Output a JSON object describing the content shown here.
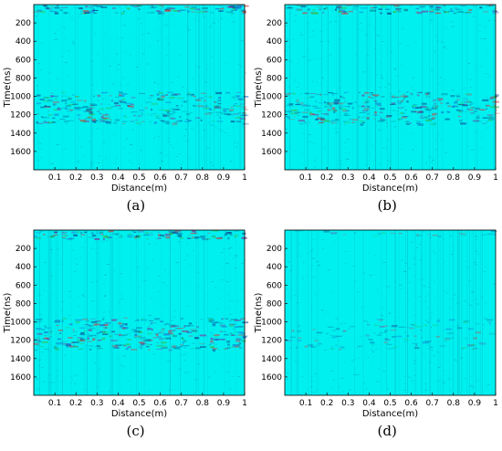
{
  "chart_data": [
    {
      "type": "heatmap",
      "label": "(a)",
      "xlabel": "Distance(m)",
      "ylabel": "Time(ns)",
      "xlim": [
        0,
        1
      ],
      "ylim": [
        1800,
        0
      ],
      "xticks": [
        0.1,
        0.2,
        0.3,
        0.4,
        0.5,
        0.6,
        0.7,
        0.8,
        0.9,
        1
      ],
      "xticklabels": [
        "0.1",
        "0.2",
        "0.3",
        "0.4",
        "0.5",
        "0.6",
        "0.7",
        "0.8",
        "0.9",
        "1"
      ],
      "yticks": [
        200,
        400,
        600,
        800,
        1000,
        1200,
        1400,
        1600
      ],
      "yticklabels": [
        "200",
        "400",
        "600",
        "800",
        "1000",
        "1200",
        "1400",
        "1600"
      ],
      "background_color": "#00f0f0",
      "bands": [
        {
          "from": 0,
          "to": 90,
          "strength": 0.9
        },
        {
          "from": 950,
          "to": 1300,
          "strength": 0.65
        }
      ]
    },
    {
      "type": "heatmap",
      "label": "(b)",
      "xlabel": "Distance(m)",
      "ylabel": "Time(ns)",
      "xlim": [
        0,
        1
      ],
      "ylim": [
        1800,
        0
      ],
      "xticks": [
        0.1,
        0.2,
        0.3,
        0.4,
        0.5,
        0.6,
        0.7,
        0.8,
        0.9,
        1
      ],
      "xticklabels": [
        "0.1",
        "0.2",
        "0.3",
        "0.4",
        "0.5",
        "0.6",
        "0.7",
        "0.8",
        "0.9",
        "1"
      ],
      "yticks": [
        200,
        400,
        600,
        800,
        1000,
        1200,
        1400,
        1600
      ],
      "yticklabels": [
        "200",
        "400",
        "600",
        "800",
        "1000",
        "1200",
        "1400",
        "1600"
      ],
      "background_color": "#00f0f0",
      "bands": [
        {
          "from": 0,
          "to": 90,
          "strength": 0.9
        },
        {
          "from": 950,
          "to": 1300,
          "strength": 0.7
        }
      ]
    },
    {
      "type": "heatmap",
      "label": "(c)",
      "xlabel": "Distance(m)",
      "ylabel": "Time(ns)",
      "xlim": [
        0,
        1
      ],
      "ylim": [
        1800,
        0
      ],
      "xticks": [
        0.1,
        0.2,
        0.3,
        0.4,
        0.5,
        0.6,
        0.7,
        0.8,
        0.9,
        1
      ],
      "xticklabels": [
        "0.1",
        "0.2",
        "0.3",
        "0.4",
        "0.5",
        "0.6",
        "0.7",
        "0.8",
        "0.9",
        "1"
      ],
      "yticks": [
        200,
        400,
        600,
        800,
        1000,
        1200,
        1400,
        1600
      ],
      "yticklabels": [
        "200",
        "400",
        "600",
        "800",
        "1000",
        "1200",
        "1400",
        "1600"
      ],
      "background_color": "#00f0f0",
      "bands": [
        {
          "from": 0,
          "to": 90,
          "strength": 0.95
        },
        {
          "from": 950,
          "to": 1300,
          "strength": 0.75
        }
      ]
    },
    {
      "type": "heatmap",
      "label": "(d)",
      "xlabel": "Distance(m)",
      "ylabel": "Time(ns)",
      "xlim": [
        0,
        1
      ],
      "ylim": [
        1800,
        0
      ],
      "xticks": [
        0.1,
        0.2,
        0.3,
        0.4,
        0.5,
        0.6,
        0.7,
        0.8,
        0.9,
        1
      ],
      "xticklabels": [
        "0.1",
        "0.2",
        "0.3",
        "0.4",
        "0.5",
        "0.6",
        "0.7",
        "0.8",
        "0.9",
        "1"
      ],
      "yticks": [
        200,
        400,
        600,
        800,
        1000,
        1200,
        1400,
        1600
      ],
      "yticklabels": [
        "200",
        "400",
        "600",
        "800",
        "1000",
        "1200",
        "1400",
        "1600"
      ],
      "background_color": "#00f0f0",
      "bands": [
        {
          "from": 0,
          "to": 60,
          "strength": 0.3
        },
        {
          "from": 950,
          "to": 1300,
          "strength": 0.25
        }
      ]
    }
  ]
}
